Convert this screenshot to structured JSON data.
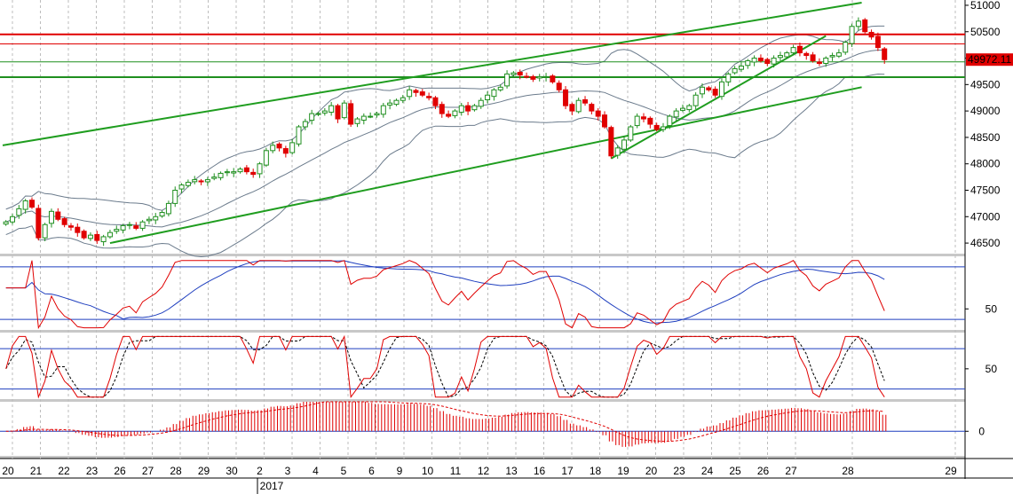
{
  "chart_data": [
    {
      "type": "candlestick",
      "panel": "price",
      "title": "",
      "ylim": [
        46300,
        51100
      ],
      "yticks": [
        46500,
        47000,
        47500,
        48000,
        48500,
        49000,
        49500,
        50000,
        50500,
        51000
      ],
      "current_price": 49972.11,
      "current_price_label": "49972.11",
      "colors": {
        "up": "#1f8f1f",
        "down": "#e00000",
        "bollinger": "#6b7b8c",
        "support": "#1f8f1f",
        "resistance": "#e00000",
        "trend": "#1f9d1f"
      },
      "closes": [
        46900,
        47000,
        47150,
        47300,
        47180,
        46600,
        46850,
        47100,
        46950,
        46850,
        46800,
        46700,
        46600,
        46650,
        46550,
        46620,
        46700,
        46760,
        46830,
        46850,
        46780,
        46900,
        46950,
        47000,
        47080,
        47250,
        47500,
        47600,
        47650,
        47700,
        47660,
        47700,
        47750,
        47820,
        47850,
        47850,
        47900,
        47850,
        47800,
        48000,
        48250,
        48350,
        48300,
        48200,
        48400,
        48700,
        48800,
        48950,
        48950,
        49000,
        49100,
        48850,
        49150,
        48750,
        48850,
        48900,
        48900,
        48950,
        49100,
        49150,
        49200,
        49250,
        49400,
        49350,
        49300,
        49250,
        49100,
        48950,
        48900,
        49000,
        49100,
        49000,
        49100,
        49200,
        49300,
        49400,
        49450,
        49700,
        49720,
        49680,
        49650,
        49600,
        49650,
        49650,
        49550,
        49400,
        49100,
        49000,
        49200,
        49150,
        49000,
        48900,
        48700,
        48150,
        48300,
        48450,
        48700,
        48900,
        48850,
        48750,
        48650,
        48700,
        48900,
        49000,
        49050,
        49100,
        49300,
        49450,
        49400,
        49300,
        49550,
        49700,
        49800,
        49850,
        49950,
        50000,
        49950,
        49900,
        50000,
        50050,
        50100,
        50200,
        50100,
        50050,
        49950,
        49900,
        50000,
        50050,
        50100,
        50300,
        50600,
        50700,
        50500,
        50400,
        50200,
        49972
      ],
      "rsi_panel": {
        "ylim": [
          40,
          75
        ],
        "yticks": [
          50
        ],
        "levels": [
          70,
          45
        ],
        "colors": {
          "rsi": "#e00000",
          "signal": "#1f3fbf",
          "levels": "#1f3fbf"
        }
      },
      "stochastic_panel": {
        "ylim": [
          20,
          85
        ],
        "yticks": [
          50
        ],
        "levels": [
          70,
          30
        ],
        "colors": {
          "k": "#e00000",
          "d": "#000000",
          "levels": "#1f3fbf"
        }
      },
      "macd_panel": {
        "ylim": [
          -25,
          30
        ],
        "yticks": [
          0
        ],
        "colors": {
          "histogram": "#e00000",
          "signal": "#e00000",
          "zero": "#1f3fbf"
        }
      },
      "x_labels": [
        "20",
        "21",
        "22",
        "23",
        "26",
        "27",
        "28",
        "29",
        "30",
        "2",
        "3",
        "4",
        "5",
        "6",
        "9",
        "10",
        "11",
        "12",
        "13",
        "16",
        "17",
        "18",
        "19",
        "20",
        "23",
        "24",
        "25",
        "26",
        "27",
        "28",
        "29"
      ],
      "year_label": "2017",
      "trendlines": [
        {
          "name": "",
          "x0": -0.5,
          "y0": 48350,
          "x1": 131.5,
          "y1": 51050
        },
        {
          "name": "",
          "x0": 16,
          "y0": 46500,
          "x1": 131.5,
          "y1": 49450
        },
        {
          "name": "",
          "x0": 93,
          "y0": 48100,
          "x1": 126,
          "y1": 50420
        }
      ],
      "horizontal_levels": [
        {
          "value": 50450,
          "color": "#e00000",
          "width": 2
        },
        {
          "value": 50270,
          "color": "#e00000",
          "width": 1
        },
        {
          "value": 49930,
          "color": "#1f8f1f",
          "width": 1
        },
        {
          "value": 49640,
          "color": "#1f8f1f",
          "width": 2
        }
      ]
    }
  ]
}
